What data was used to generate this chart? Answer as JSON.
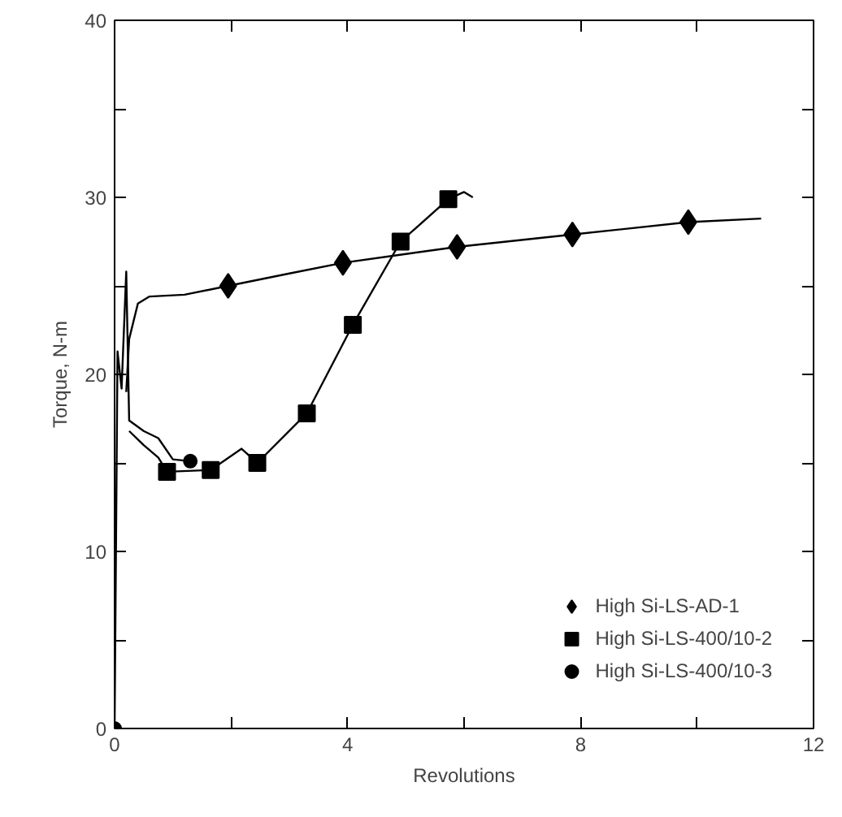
{
  "chart_data": {
    "type": "line",
    "xlabel": "Revolutions",
    "ylabel": "Torque, N-m",
    "xlim": [
      0,
      12
    ],
    "ylim": [
      0,
      40
    ],
    "xticks": [
      0,
      {
        "value": 2,
        "label": null
      },
      4,
      {
        "value": 6,
        "label": null
      },
      8,
      {
        "value": 10,
        "label": null
      },
      12
    ],
    "yticks": [
      0,
      {
        "value": 5,
        "label": null
      },
      10,
      {
        "value": 15,
        "label": null
      },
      20,
      {
        "value": 25,
        "label": null
      },
      30,
      {
        "value": 35,
        "label": null
      },
      40
    ],
    "grid": false,
    "legend": "bottom right",
    "series": [
      {
        "marker": "none",
        "color": "#000000",
        "x": [
          0.2,
          0.25,
          0.4,
          0.6,
          1.2,
          1.95,
          3.0,
          3.92,
          5.0,
          5.88,
          7.86,
          9.85,
          11.1
        ],
        "values": [
          19.0,
          22.0,
          24.0,
          24.4,
          24.5,
          25.0,
          25.7,
          26.3,
          26.8,
          27.2,
          27.9,
          28.6,
          28.8
        ]
      },
      {
        "marker": "none",
        "color": "#000000",
        "x": [
          0.25,
          0.5,
          0.75,
          0.9,
          1.65,
          2.18,
          2.45,
          3.3,
          4.09,
          4.91,
          5.73,
          6.0,
          6.15
        ],
        "values": [
          16.8,
          16.0,
          15.3,
          14.5,
          14.6,
          15.8,
          15.0,
          17.8,
          22.8,
          27.5,
          29.9,
          30.3,
          30.0
        ]
      },
      {
        "marker": "none",
        "color": "#000000",
        "x": [
          0,
          0.05,
          0.12,
          0.2,
          0.25,
          0.5,
          0.75,
          1.0,
          1.3
        ],
        "values": [
          0,
          21.3,
          19.2,
          25.8,
          17.4,
          16.8,
          16.4,
          15.2,
          15.1
        ]
      },
      {
        "type": "scatter",
        "marker": "diamond",
        "name": "High Si-LS-AD-1",
        "color": "#000000",
        "x": [
          1.95,
          3.92,
          5.88,
          7.86,
          9.85
        ],
        "values": [
          25.0,
          26.3,
          27.2,
          27.9,
          28.6
        ]
      },
      {
        "type": "scatter",
        "marker": "square",
        "name": "High Si-LS-400/10-2",
        "color": "#000000",
        "x": [
          0.9,
          1.65,
          2.45,
          3.3,
          4.09,
          4.91,
          5.73
        ],
        "values": [
          14.5,
          14.6,
          15.0,
          17.8,
          22.8,
          27.5,
          29.9
        ]
      },
      {
        "type": "scatter",
        "marker": "circle",
        "name": "High Si-LS-400/10-3",
        "color": "#000000",
        "x": [
          0,
          1.3
        ],
        "values": [
          0,
          15.1
        ]
      }
    ]
  }
}
